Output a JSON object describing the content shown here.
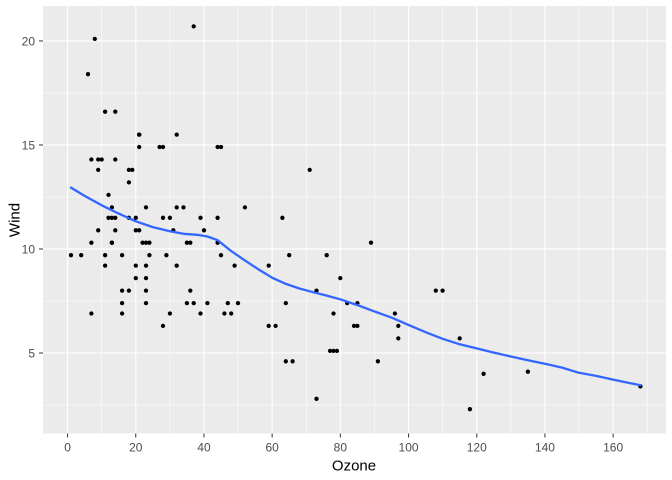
{
  "chart_data": {
    "type": "scatter",
    "title": "",
    "xlabel": "Ozone",
    "ylabel": "Wind",
    "legend": "none",
    "grid": true,
    "x_domain": [
      -7.2,
      175.5
    ],
    "y_domain": [
      1.13,
      21.68
    ],
    "x_ticks": [
      0,
      20,
      40,
      60,
      80,
      100,
      120,
      140,
      160
    ],
    "y_ticks": [
      5,
      10,
      15,
      20
    ],
    "x_minor_ticks": [
      10,
      30,
      50,
      70,
      90,
      110,
      130,
      150,
      170
    ],
    "y_minor_ticks": [
      2.5,
      7.5,
      12.5,
      17.5
    ],
    "points": [
      [
        41,
        7.4
      ],
      [
        36,
        8
      ],
      [
        12,
        12.6
      ],
      [
        18,
        11.5
      ],
      [
        28,
        14.9
      ],
      [
        23,
        8.6
      ],
      [
        19,
        13.8
      ],
      [
        8,
        20.1
      ],
      [
        7,
        6.9
      ],
      [
        16,
        9.7
      ],
      [
        11,
        9.2
      ],
      [
        14,
        10.9
      ],
      [
        18,
        13.2
      ],
      [
        14,
        11.5
      ],
      [
        34,
        12
      ],
      [
        6,
        18.4
      ],
      [
        30,
        11.5
      ],
      [
        11,
        9.7
      ],
      [
        1,
        9.7
      ],
      [
        11,
        16.6
      ],
      [
        4,
        9.7
      ],
      [
        32,
        12
      ],
      [
        23,
        12
      ],
      [
        45,
        14.9
      ],
      [
        115,
        5.7
      ],
      [
        37,
        7.4
      ],
      [
        29,
        9.7
      ],
      [
        71,
        13.8
      ],
      [
        39,
        11.5
      ],
      [
        23,
        8
      ],
      [
        21,
        14.9
      ],
      [
        37,
        20.7
      ],
      [
        20,
        9.2
      ],
      [
        12,
        11.5
      ],
      [
        13,
        10.3
      ],
      [
        135,
        4.1
      ],
      [
        49,
        9.2
      ],
      [
        32,
        9.2
      ],
      [
        64,
        4.6
      ],
      [
        40,
        10.9
      ],
      [
        77,
        5.1
      ],
      [
        97,
        6.3
      ],
      [
        97,
        5.7
      ],
      [
        85,
        7.4
      ],
      [
        10,
        14.3
      ],
      [
        27,
        14.9
      ],
      [
        7,
        14.3
      ],
      [
        48,
        6.9
      ],
      [
        35,
        10.3
      ],
      [
        61,
        6.3
      ],
      [
        79,
        5.1
      ],
      [
        63,
        11.5
      ],
      [
        16,
        6.9
      ],
      [
        80,
        8.6
      ],
      [
        108,
        8
      ],
      [
        20,
        8.6
      ],
      [
        52,
        12
      ],
      [
        82,
        7.4
      ],
      [
        50,
        7.4
      ],
      [
        64,
        7.4
      ],
      [
        59,
        9.2
      ],
      [
        39,
        6.9
      ],
      [
        9,
        13.8
      ],
      [
        16,
        7.4
      ],
      [
        78,
        6.9
      ],
      [
        35,
        7.4
      ],
      [
        66,
        4.6
      ],
      [
        122,
        4
      ],
      [
        89,
        10.3
      ],
      [
        110,
        8
      ],
      [
        44,
        11.5
      ],
      [
        28,
        11.5
      ],
      [
        65,
        9.7
      ],
      [
        22,
        10.3
      ],
      [
        59,
        6.3
      ],
      [
        23,
        7.4
      ],
      [
        31,
        10.9
      ],
      [
        44,
        10.3
      ],
      [
        21,
        15.5
      ],
      [
        9,
        14.3
      ],
      [
        45,
        9.7
      ],
      [
        168,
        3.4
      ],
      [
        73,
        8
      ],
      [
        76,
        9.7
      ],
      [
        118,
        2.3
      ],
      [
        84,
        6.3
      ],
      [
        85,
        6.3
      ],
      [
        96,
        6.9
      ],
      [
        78,
        5.1
      ],
      [
        73,
        2.8
      ],
      [
        91,
        4.6
      ],
      [
        47,
        7.4
      ],
      [
        32,
        15.5
      ],
      [
        20,
        10.9
      ],
      [
        23,
        10.3
      ],
      [
        21,
        10.9
      ],
      [
        24,
        9.7
      ],
      [
        44,
        14.9
      ],
      [
        21,
        15.5
      ],
      [
        28,
        6.3
      ],
      [
        9,
        10.9
      ],
      [
        13,
        11.5
      ],
      [
        46,
        6.9
      ],
      [
        18,
        13.8
      ],
      [
        13,
        10.3
      ],
      [
        24,
        10.3
      ],
      [
        16,
        8
      ],
      [
        13,
        12
      ],
      [
        23,
        9.2
      ],
      [
        36,
        10.3
      ],
      [
        7,
        10.3
      ],
      [
        14,
        16.6
      ],
      [
        30,
        6.9
      ],
      [
        14,
        14.3
      ],
      [
        18,
        8
      ],
      [
        20,
        11.5
      ]
    ],
    "smooth_line": {
      "name": "loess-smooth",
      "values": [
        [
          1,
          12.95
        ],
        [
          5,
          12.55
        ],
        [
          10,
          12.1
        ],
        [
          15,
          11.7
        ],
        [
          20,
          11.33
        ],
        [
          25,
          11.05
        ],
        [
          30,
          10.85
        ],
        [
          34,
          10.73
        ],
        [
          38,
          10.68
        ],
        [
          41,
          10.6
        ],
        [
          44,
          10.42
        ],
        [
          48,
          9.9
        ],
        [
          52,
          9.45
        ],
        [
          56,
          9.02
        ],
        [
          60,
          8.62
        ],
        [
          64,
          8.32
        ],
        [
          68,
          8.1
        ],
        [
          72,
          7.92
        ],
        [
          76,
          7.76
        ],
        [
          80,
          7.58
        ],
        [
          85,
          7.3
        ],
        [
          90,
          7.0
        ],
        [
          95,
          6.7
        ],
        [
          100,
          6.35
        ],
        [
          105,
          6.0
        ],
        [
          110,
          5.68
        ],
        [
          115,
          5.42
        ],
        [
          120,
          5.22
        ],
        [
          125,
          5.02
        ],
        [
          130,
          4.83
        ],
        [
          135,
          4.65
        ],
        [
          140,
          4.48
        ],
        [
          145,
          4.3
        ],
        [
          150,
          4.05
        ],
        [
          155,
          3.9
        ],
        [
          160,
          3.72
        ],
        [
          164,
          3.58
        ],
        [
          168,
          3.45
        ]
      ]
    },
    "colors": {
      "panel_bg": "#EBEBEB",
      "grid": "#FFFFFF",
      "point": "#000000",
      "smooth_line": "#3366FF",
      "tick_label": "#4D4D4D",
      "tick_mark": "#333333",
      "axis_title": "#000000",
      "background": "#FFFFFF"
    }
  }
}
